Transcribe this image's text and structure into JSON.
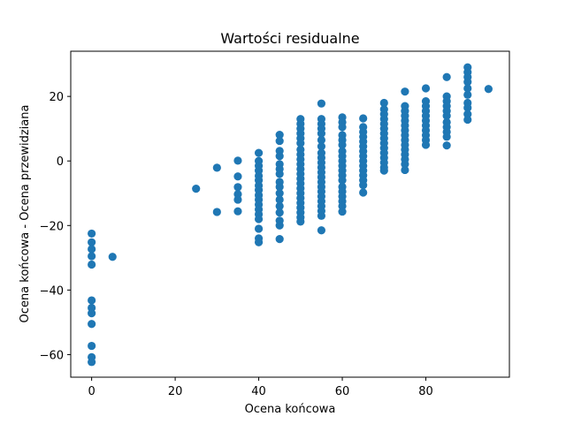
{
  "chart_data": {
    "type": "scatter",
    "title": "Wartości residualne",
    "xlabel": "Ocena końcowa",
    "ylabel": "Ocena końcowa - Ocena przewidziana",
    "xlim": [
      -5,
      100
    ],
    "ylim": [
      -67,
      34
    ],
    "xticks": [
      0,
      20,
      40,
      60,
      80
    ],
    "yticks": [
      -60,
      -40,
      -20,
      0,
      20
    ],
    "xtick_labels": [
      "0",
      "20",
      "40",
      "60",
      "80"
    ],
    "ytick_labels": [
      "−60",
      "−40",
      "−20",
      "0",
      "20"
    ],
    "marker_color": "#1f77b4",
    "grid": false,
    "legend": "none",
    "series": [
      {
        "points": [
          [
            0,
            -22.5
          ],
          [
            0,
            -25.2
          ],
          [
            0,
            -27.3
          ],
          [
            0,
            -29.5
          ],
          [
            0,
            -32.1
          ],
          [
            0,
            -43.2
          ],
          [
            0,
            -45.5
          ],
          [
            0,
            -47.2
          ],
          [
            0,
            -50.5
          ],
          [
            0,
            -57.3
          ],
          [
            0,
            -60.8
          ],
          [
            0,
            -62.3
          ],
          [
            5,
            -29.7
          ],
          [
            25,
            -8.6
          ],
          [
            30,
            -2.1
          ],
          [
            30,
            -15.8
          ],
          [
            35,
            0.1
          ],
          [
            35,
            -4.8
          ],
          [
            35,
            -8.1
          ],
          [
            35,
            -10.3
          ],
          [
            35,
            -12.0
          ],
          [
            35,
            -15.6
          ],
          [
            40,
            2.5
          ],
          [
            40,
            0.0
          ],
          [
            40,
            -1.5
          ],
          [
            40,
            -3.0
          ],
          [
            40,
            -4.6
          ],
          [
            40,
            -6.0
          ],
          [
            40,
            -7.6
          ],
          [
            40,
            -9.0
          ],
          [
            40,
            -10.6
          ],
          [
            40,
            -12.0
          ],
          [
            40,
            -13.5
          ],
          [
            40,
            -15.0
          ],
          [
            40,
            -16.5
          ],
          [
            40,
            -18.0
          ],
          [
            40,
            -21.0
          ],
          [
            40,
            -24.0
          ],
          [
            40,
            -25.2
          ],
          [
            45,
            8.1
          ],
          [
            45,
            6.2
          ],
          [
            45,
            3.1
          ],
          [
            45,
            1.5
          ],
          [
            45,
            -1.0
          ],
          [
            45,
            -2.5
          ],
          [
            45,
            -4.0
          ],
          [
            45,
            -6.5
          ],
          [
            45,
            -8.0
          ],
          [
            45,
            -10.0
          ],
          [
            45,
            -12.0
          ],
          [
            45,
            -14.0
          ],
          [
            45,
            -16.0
          ],
          [
            45,
            -18.5
          ],
          [
            45,
            -20.0
          ],
          [
            45,
            -24.2
          ],
          [
            50,
            13.0
          ],
          [
            50,
            11.5
          ],
          [
            50,
            10.0
          ],
          [
            50,
            8.5
          ],
          [
            50,
            7.0
          ],
          [
            50,
            5.5
          ],
          [
            50,
            3.5
          ],
          [
            50,
            2.0
          ],
          [
            50,
            0.5
          ],
          [
            50,
            -1.0
          ],
          [
            50,
            -2.5
          ],
          [
            50,
            -4.0
          ],
          [
            50,
            -5.5
          ],
          [
            50,
            -7.0
          ],
          [
            50,
            -8.5
          ],
          [
            50,
            -10.0
          ],
          [
            50,
            -11.5
          ],
          [
            50,
            -13.0
          ],
          [
            50,
            -14.5
          ],
          [
            50,
            -16.0
          ],
          [
            50,
            -17.5
          ],
          [
            50,
            -18.8
          ],
          [
            55,
            17.8
          ],
          [
            55,
            13.0
          ],
          [
            55,
            11.5
          ],
          [
            55,
            10.0
          ],
          [
            55,
            8.5
          ],
          [
            55,
            6.5
          ],
          [
            55,
            4.5
          ],
          [
            55,
            2.5
          ],
          [
            55,
            1.0
          ],
          [
            55,
            -0.5
          ],
          [
            55,
            -2.0
          ],
          [
            55,
            -3.5
          ],
          [
            55,
            -5.0
          ],
          [
            55,
            -6.5
          ],
          [
            55,
            -8.0
          ],
          [
            55,
            -9.5
          ],
          [
            55,
            -11.0
          ],
          [
            55,
            -12.5
          ],
          [
            55,
            -14.0
          ],
          [
            55,
            -15.5
          ],
          [
            55,
            -17.0
          ],
          [
            55,
            -21.5
          ],
          [
            60,
            13.5
          ],
          [
            60,
            12.0
          ],
          [
            60,
            10.5
          ],
          [
            60,
            8.0
          ],
          [
            60,
            6.5
          ],
          [
            60,
            5.0
          ],
          [
            60,
            3.0
          ],
          [
            60,
            1.5
          ],
          [
            60,
            0.0
          ],
          [
            60,
            -1.5
          ],
          [
            60,
            -3.0
          ],
          [
            60,
            -4.5
          ],
          [
            60,
            -6.0
          ],
          [
            60,
            -8.0
          ],
          [
            60,
            -9.5
          ],
          [
            60,
            -11.0
          ],
          [
            60,
            -12.5
          ],
          [
            60,
            -14.0
          ],
          [
            60,
            -15.7
          ],
          [
            65,
            13.2
          ],
          [
            65,
            10.5
          ],
          [
            65,
            9.0
          ],
          [
            65,
            7.5
          ],
          [
            65,
            6.0
          ],
          [
            65,
            4.5
          ],
          [
            65,
            3.0
          ],
          [
            65,
            1.5
          ],
          [
            65,
            0.0
          ],
          [
            65,
            -1.5
          ],
          [
            65,
            -3.0
          ],
          [
            65,
            -4.5
          ],
          [
            65,
            -6.0
          ],
          [
            65,
            -7.5
          ],
          [
            65,
            -9.8
          ],
          [
            70,
            18.0
          ],
          [
            70,
            16.0
          ],
          [
            70,
            14.5
          ],
          [
            70,
            13.0
          ],
          [
            70,
            11.5
          ],
          [
            70,
            10.0
          ],
          [
            70,
            8.5
          ],
          [
            70,
            7.0
          ],
          [
            70,
            5.5
          ],
          [
            70,
            4.0
          ],
          [
            70,
            2.5
          ],
          [
            70,
            1.0
          ],
          [
            70,
            -0.5
          ],
          [
            70,
            -2.0
          ],
          [
            70,
            -3.0
          ],
          [
            75,
            21.5
          ],
          [
            75,
            17.0
          ],
          [
            75,
            15.5
          ],
          [
            75,
            14.0
          ],
          [
            75,
            12.5
          ],
          [
            75,
            11.0
          ],
          [
            75,
            9.5
          ],
          [
            75,
            8.0
          ],
          [
            75,
            6.5
          ],
          [
            75,
            5.0
          ],
          [
            75,
            3.5
          ],
          [
            75,
            2.0
          ],
          [
            75,
            0.5
          ],
          [
            75,
            -1.0
          ],
          [
            75,
            -2.8
          ],
          [
            80,
            22.5
          ],
          [
            80,
            18.5
          ],
          [
            80,
            17.0
          ],
          [
            80,
            15.5
          ],
          [
            80,
            14.0
          ],
          [
            80,
            12.5
          ],
          [
            80,
            11.0
          ],
          [
            80,
            9.5
          ],
          [
            80,
            8.0
          ],
          [
            80,
            6.5
          ],
          [
            80,
            5.0
          ],
          [
            85,
            26.0
          ],
          [
            85,
            20.0
          ],
          [
            85,
            18.5
          ],
          [
            85,
            17.0
          ],
          [
            85,
            15.5
          ],
          [
            85,
            14.0
          ],
          [
            85,
            12.0
          ],
          [
            85,
            10.5
          ],
          [
            85,
            9.0
          ],
          [
            85,
            7.5
          ],
          [
            85,
            4.8
          ],
          [
            90,
            29.0
          ],
          [
            90,
            27.5
          ],
          [
            90,
            26.0
          ],
          [
            90,
            24.5
          ],
          [
            90,
            22.5
          ],
          [
            90,
            20.5
          ],
          [
            90,
            18.0
          ],
          [
            90,
            16.5
          ],
          [
            90,
            14.5
          ],
          [
            90,
            12.8
          ],
          [
            95,
            22.3
          ]
        ]
      }
    ]
  }
}
